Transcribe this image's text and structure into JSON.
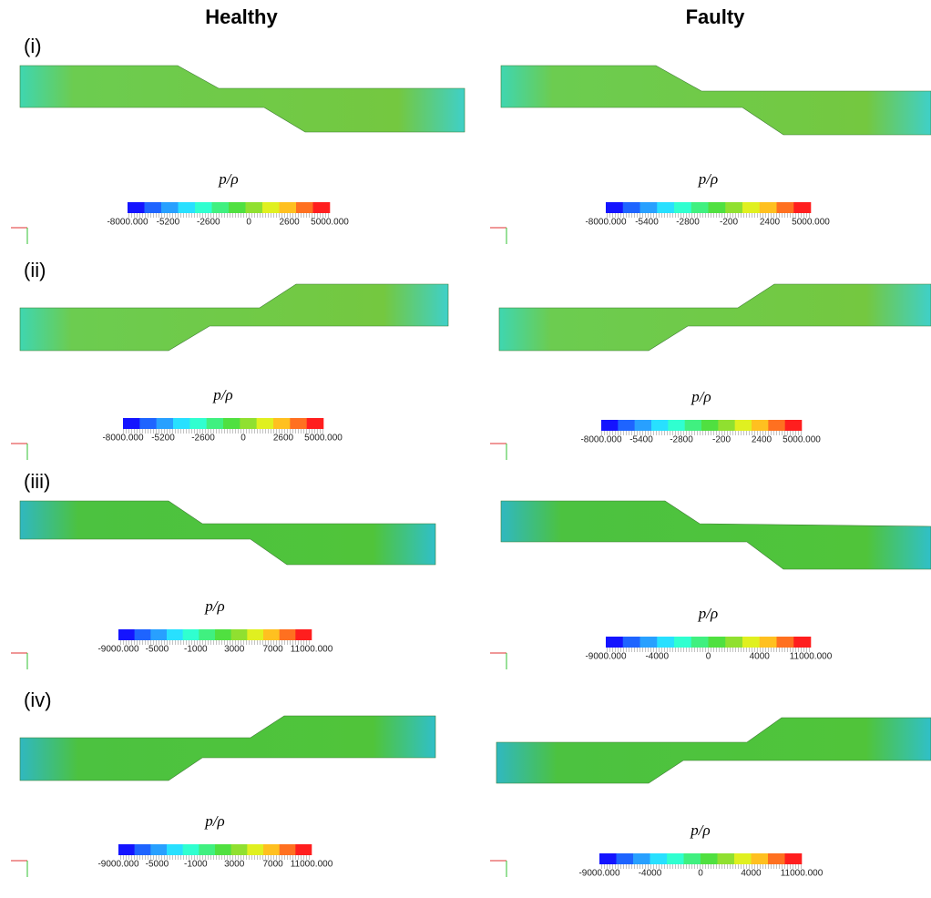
{
  "columns": [
    "Healthy",
    "Faulty"
  ],
  "rows": [
    {
      "label": "(i)",
      "panels": [
        {
          "legend_title": "p/ρ",
          "ticks": [
            "-8000.000",
            "-5200",
            "-2600",
            "0",
            "2600",
            "5000.000"
          ]
        },
        {
          "legend_title": "p/ρ",
          "ticks": [
            "-8000.000",
            "-5400",
            "-2800",
            "-200",
            "2400",
            "5000.000"
          ]
        }
      ]
    },
    {
      "label": "(ii)",
      "panels": [
        {
          "legend_title": "p/ρ",
          "ticks": [
            "-8000.000",
            "-5200",
            "-2600",
            "0",
            "2600",
            "5000.000"
          ]
        },
        {
          "legend_title": "p/ρ",
          "ticks": [
            "-8000.000",
            "-5400",
            "-2800",
            "-200",
            "2400",
            "5000.000"
          ]
        }
      ]
    },
    {
      "label": "(iii)",
      "panels": [
        {
          "legend_title": "p/ρ",
          "ticks": [
            "-9000.000",
            "-5000",
            "-1000",
            "3000",
            "7000",
            "11000.000"
          ]
        },
        {
          "legend_title": "p/ρ",
          "ticks": [
            "-9000.000",
            "-4000",
            "0",
            "4000",
            "11000.000"
          ]
        }
      ]
    },
    {
      "label": "(iv)",
      "panels": [
        {
          "legend_title": "p/ρ",
          "ticks": [
            "-9000.000",
            "-5000",
            "-1000",
            "3000",
            "7000",
            "11000.000"
          ]
        },
        {
          "legend_title": "p/ρ",
          "ticks": [
            "-9000.000",
            "-4000",
            "0",
            "4000",
            "11000.000"
          ]
        }
      ]
    }
  ]
}
